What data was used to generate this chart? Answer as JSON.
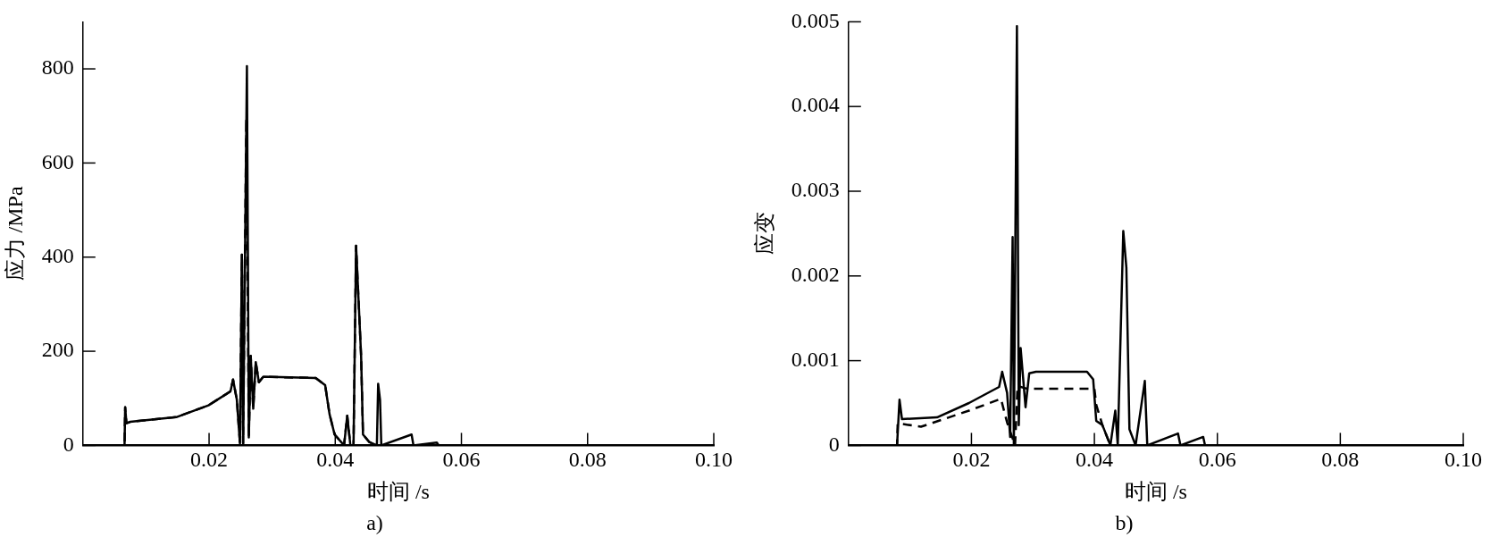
{
  "chart_data": [
    {
      "type": "line",
      "xlabel": "时间 /s",
      "ylabel": "应力 /MPa",
      "annotations": [
        "a)"
      ],
      "xlim": [
        0,
        0.1
      ],
      "ylim": [
        0,
        900
      ],
      "xticks": [
        0.02,
        0.04,
        0.06,
        0.08,
        {
          "value": 0.1,
          "label": "0.10"
        }
      ],
      "yticks": [
        0,
        200,
        400,
        600,
        800
      ],
      "series": [
        {
          "color": "#000000",
          "line_style": "solid",
          "x": [
            0,
            0.0066,
            0.0067,
            0.0069,
            0.0075,
            0.0148,
            0.0199,
            0.0234,
            0.0238,
            0.0244,
            0.0249,
            0.0252,
            0.0254,
            0.026,
            0.0263,
            0.0266,
            0.027,
            0.0274,
            0.0279,
            0.0286,
            0.0369,
            0.0384,
            0.0391,
            0.0399,
            0.0414,
            0.0419,
            0.0424,
            0.0429,
            0.0433,
            0.0441,
            0.0444,
            0.0454,
            0.0466,
            0.0468,
            0.0471,
            0.0473,
            0.0521,
            0.0524,
            0.0561,
            0.0564,
            0.1
          ],
          "values": [
            0,
            0,
            81,
            47,
            50,
            60,
            85,
            115,
            140,
            97,
            4,
            405,
            4,
            806,
            17,
            190,
            78,
            177,
            134,
            146,
            143,
            128,
            66,
            23,
            0,
            63,
            0,
            0,
            424,
            190,
            23,
            7,
            0,
            131,
            97,
            0,
            23,
            0,
            6,
            0,
            0
          ]
        },
        {
          "color": "#000000",
          "line_style": "dashed",
          "x": [
            0,
            0.0066,
            0.0067,
            0.0069,
            0.0075,
            0.0148,
            0.0199,
            0.0234,
            0.0238,
            0.0244,
            0.0249,
            0.0252,
            0.0254,
            0.0259,
            0.0263,
            0.0266,
            0.027,
            0.0274,
            0.0279,
            0.0286,
            0.0369,
            0.0384,
            0.0391,
            0.0399,
            0.0414,
            0.0419,
            0.0424,
            0.0429,
            0.0433,
            0.0441,
            0.0444,
            0.0454,
            0.0466,
            0.1
          ],
          "values": [
            0,
            0,
            81,
            47,
            50,
            60,
            85,
            115,
            140,
            97,
            4,
            405,
            4,
            695,
            17,
            190,
            78,
            177,
            134,
            146,
            143,
            128,
            66,
            23,
            0,
            63,
            0,
            0,
            424,
            190,
            23,
            7,
            0,
            0
          ]
        }
      ]
    },
    {
      "type": "line",
      "xlabel": "时间 /s",
      "ylabel": "应变",
      "annotations": [
        "b)"
      ],
      "xlim": [
        0,
        0.1
      ],
      "ylim": [
        0,
        0.005
      ],
      "xticks": [
        0.02,
        0.04,
        0.06,
        0.08,
        {
          "value": 0.1,
          "label": "0.10"
        }
      ],
      "yticks": [
        0,
        0.001,
        0.002,
        0.003,
        0.004,
        0.005
      ],
      "series": [
        {
          "color": "#000000",
          "line_style": "solid",
          "x": [
            0,
            0.0079,
            0.0083,
            0.0087,
            0.0144,
            0.0196,
            0.0232,
            0.0245,
            0.025,
            0.0258,
            0.0263,
            0.0267,
            0.0269,
            0.0274,
            0.0277,
            0.028,
            0.0288,
            0.0294,
            0.0305,
            0.0388,
            0.0398,
            0.0403,
            0.0413,
            0.0426,
            0.0434,
            0.0438,
            0.0447,
            0.0452,
            0.0457,
            0.0467,
            0.0482,
            0.0486,
            0.0536,
            0.054,
            0.0577,
            0.058,
            0.1
          ],
          "values": [
            0,
            0,
            0.00054,
            0.00031,
            0.00033,
            0.0005,
            0.00064,
            0.00069,
            0.00087,
            0.00062,
            0.0001,
            0.00246,
            0,
            0.00495,
            0.00024,
            0.00115,
            0.00045,
            0.00085,
            0.00087,
            0.00087,
            0.00078,
            0.00029,
            0.00024,
            0,
            0.00041,
            0,
            0.00253,
            0.0021,
            0.00019,
            0,
            0.00076,
            0,
            0.00014,
            0,
            0.0001,
            0,
            0
          ]
        },
        {
          "color": "#000000",
          "line_style": "dashed",
          "x": [
            0,
            0.0079,
            0.008,
            0.0118,
            0.0196,
            0.0248,
            0.0258,
            0.0271,
            0.0275,
            0.029,
            0.04,
            0.0403,
            0.0413,
            0.0426,
            0.1
          ],
          "values": [
            0,
            0,
            0.00026,
            0.00022,
            0.00041,
            0.00055,
            0.00027,
            0,
            0.0007,
            0.00067,
            0.00067,
            0.00048,
            0.00024,
            0,
            0
          ]
        }
      ]
    }
  ]
}
